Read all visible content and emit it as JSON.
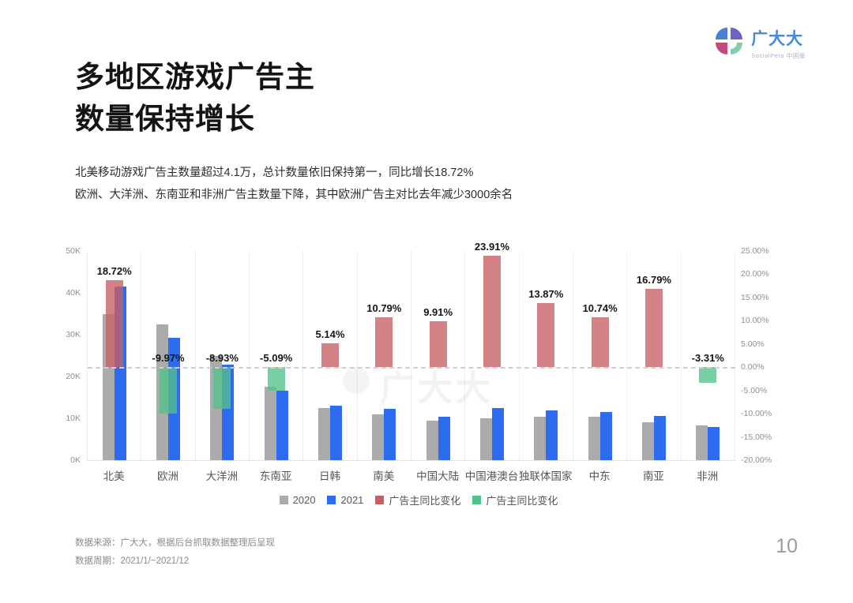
{
  "header": {
    "title_line1": "多地区游戏广告主",
    "title_line2": "数量保持增长",
    "subtitle_line1": "北美移动游戏广告主数量超过4.1万，总计数量依旧保持第一，同比增长18.72%",
    "subtitle_line2": "欧洲、大洋洲、东南亚和非洲广告主数量下降，其中欧洲广告主对比去年减少3000余名",
    "logo": {
      "name": "广大大",
      "subtitle": "SocialPeta 中国版"
    }
  },
  "watermark": {
    "text": "广大大"
  },
  "chart_data": {
    "type": "bar",
    "title": "",
    "categories": [
      "北美",
      "欧洲",
      "大洋洲",
      "东南亚",
      "日韩",
      "南美",
      "中国大陆",
      "中国港澳台",
      "独联体国家",
      "中东",
      "南亚",
      "非洲"
    ],
    "series": [
      {
        "name": "2020",
        "color": "#ababab",
        "values_k": [
          35.0,
          32.5,
          25.0,
          17.6,
          12.4,
          11.0,
          9.5,
          10.0,
          10.4,
          10.4,
          9.0,
          8.3
        ]
      },
      {
        "name": "2021",
        "color": "#2d6cf0",
        "values_k": [
          41.5,
          29.3,
          22.8,
          16.7,
          13.0,
          12.2,
          10.4,
          12.4,
          11.8,
          11.5,
          10.5,
          8.0
        ]
      }
    ],
    "change_series": {
      "name": "广告主同比变化",
      "positive_color": "#c65f63",
      "negative_color": "#52c28a",
      "values_pct": [
        18.72,
        -9.97,
        -8.93,
        -5.09,
        5.14,
        10.79,
        9.91,
        23.91,
        13.87,
        10.74,
        16.79,
        -3.31
      ],
      "labels": [
        "18.72%",
        "-9.97%",
        "-8.93%",
        "-5.09%",
        "5.14%",
        "10.79%",
        "9.91%",
        "23.91%",
        "13.87%",
        "10.74%",
        "16.79%",
        "-3.31%"
      ]
    },
    "left_axis": {
      "ticks": [
        "50K",
        "40K",
        "30K",
        "20K",
        "10K",
        "0K"
      ],
      "max_k": 50,
      "min_k": 0,
      "label_unit": "K"
    },
    "right_axis": {
      "ticks": [
        "25.00%",
        "20.00%",
        "15.00%",
        "10.00%",
        "5.00%",
        "0.00%",
        "-5.00%",
        "-10.00%",
        "-15.00%",
        "-20.00%"
      ],
      "max_pct": 25,
      "min_pct": -20
    },
    "legend": [
      {
        "label": "2020",
        "color": "#ababab"
      },
      {
        "label": "2021",
        "color": "#2d6cf0"
      },
      {
        "label": "广告主同比变化",
        "color": "#c65f63"
      },
      {
        "label": "广告主同比变化",
        "color": "#52c28a"
      }
    ],
    "legend_position": "bottom",
    "grid": true,
    "zero_line": "dashed"
  },
  "footer": {
    "source": "数据来源：广大大，根据后台抓取数据整理后呈现",
    "period": "数据周期：2021/1/~2021/12",
    "page_number": "10"
  }
}
